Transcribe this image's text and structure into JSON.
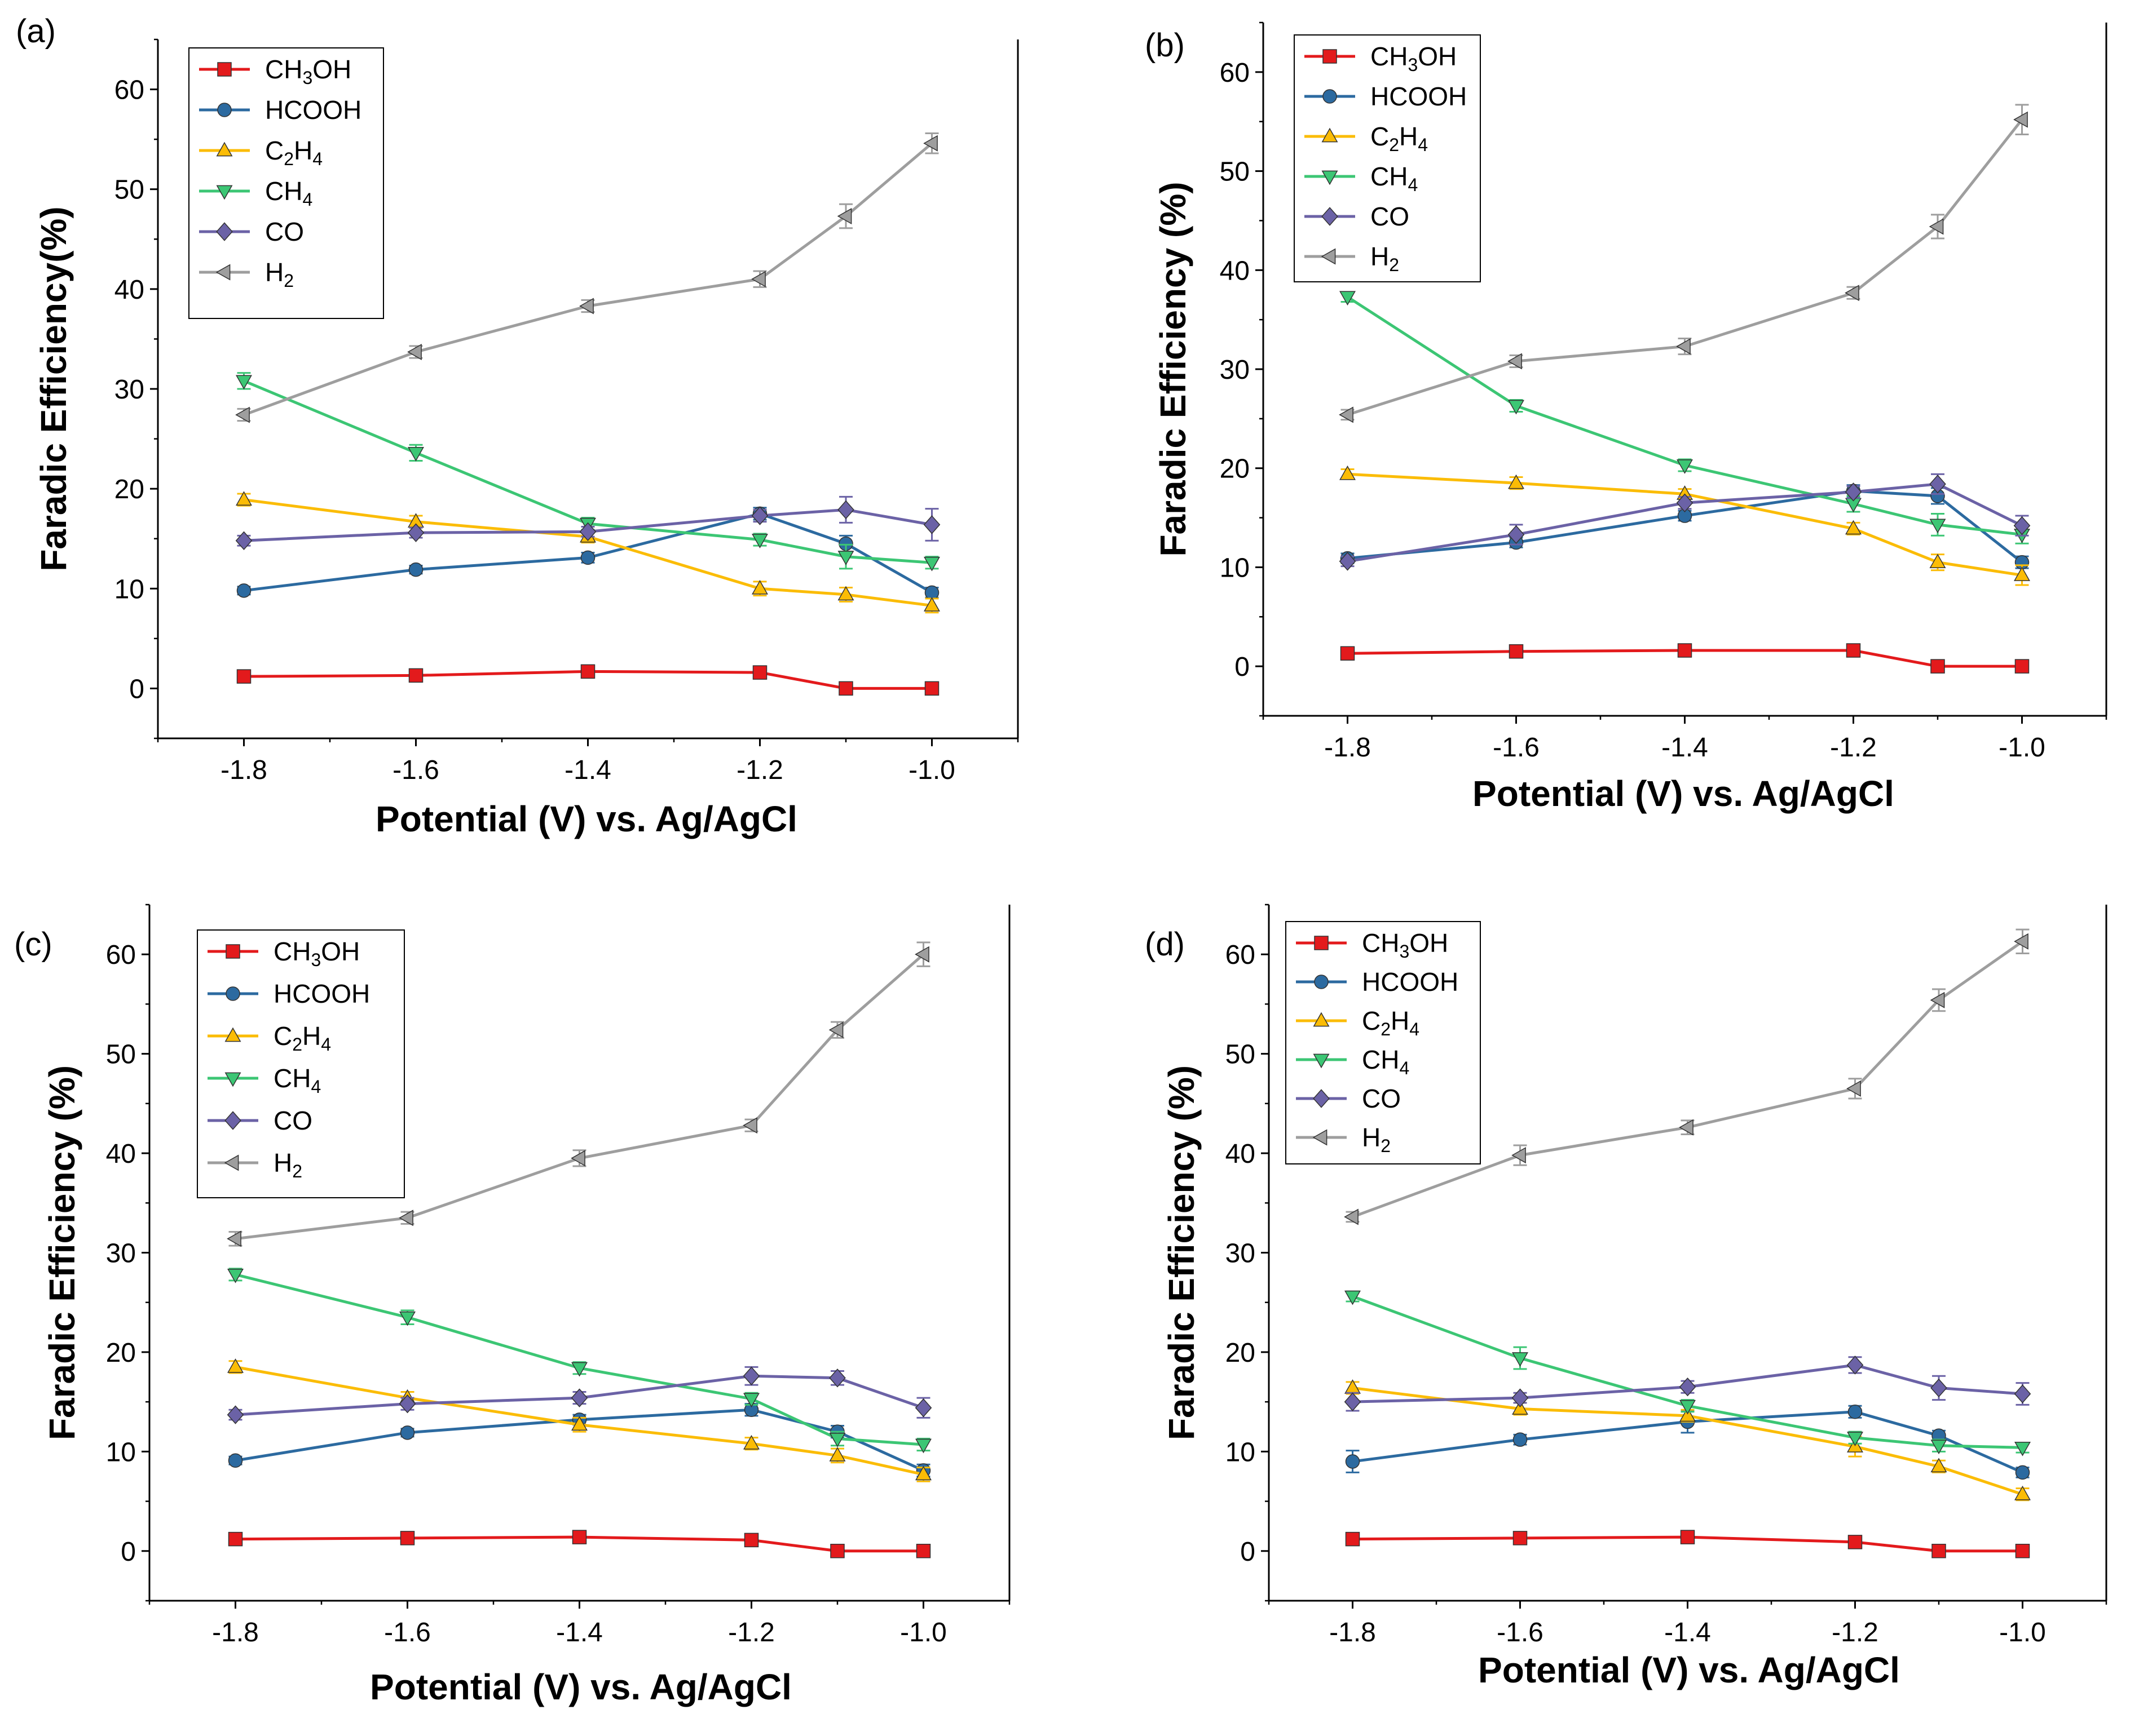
{
  "chart_data": [
    {
      "panel": "(a)",
      "type": "line",
      "xlabel": "Potential (V) vs. Ag/AgCl",
      "ylabel": "Faradic Efficiency(%)",
      "xlim": [
        -1.9,
        -0.9
      ],
      "ylim": [
        -5,
        65
      ],
      "xticks": [
        -1.8,
        -1.6,
        -1.4,
        -1.2,
        -1.0
      ],
      "xtick_labels": [
        "-1.8",
        "-1.6",
        "-1.4",
        "-1.2",
        "-1.0"
      ],
      "yticks": [
        0,
        10,
        20,
        30,
        40,
        50,
        60
      ],
      "ytick_labels": [
        "0",
        "10",
        "20",
        "30",
        "40",
        "50",
        "60"
      ],
      "x": [
        -1.8,
        -1.6,
        -1.4,
        -1.2,
        -1.1,
        -1.0
      ],
      "series": [
        {
          "name": "CH3OH",
          "label": [
            [
              "CH",
              "n"
            ],
            [
              "3",
              "sub"
            ],
            [
              "OH",
              "n"
            ]
          ],
          "color": "#e31a1c",
          "marker": "square",
          "values": [
            1.2,
            1.3,
            1.7,
            1.6,
            0.0,
            0.0
          ],
          "errors": [
            0.3,
            0.3,
            0.3,
            0.3,
            0.2,
            0.2
          ]
        },
        {
          "name": "HCOOH",
          "label": [
            [
              "HCOOH",
              "n"
            ]
          ],
          "color": "#2c6aa0",
          "marker": "circle",
          "values": [
            9.8,
            11.9,
            13.1,
            17.5,
            14.5,
            9.6
          ],
          "errors": [
            0.4,
            0.4,
            0.5,
            0.6,
            0.8,
            0.5
          ]
        },
        {
          "name": "C2H4",
          "label": [
            [
              "C",
              "n"
            ],
            [
              "2",
              "sub"
            ],
            [
              "H",
              "n"
            ],
            [
              "4",
              "sub"
            ]
          ],
          "color": "#fbbc05",
          "marker": "triangle-up",
          "values": [
            18.9,
            16.7,
            15.2,
            10.0,
            9.4,
            8.3
          ],
          "errors": [
            0.6,
            0.6,
            0.6,
            0.7,
            0.7,
            0.7
          ]
        },
        {
          "name": "CH4",
          "label": [
            [
              "CH",
              "n"
            ],
            [
              "4",
              "sub"
            ]
          ],
          "color": "#3cc674",
          "marker": "triangle-down",
          "values": [
            30.8,
            23.6,
            16.5,
            14.9,
            13.2,
            12.6
          ],
          "errors": [
            0.8,
            0.8,
            0.6,
            0.6,
            1.2,
            0.6
          ]
        },
        {
          "name": "CO",
          "label": [
            [
              "CO",
              "n"
            ]
          ],
          "color": "#6b62a6",
          "marker": "diamond",
          "values": [
            14.8,
            15.6,
            15.7,
            17.3,
            17.9,
            16.4
          ],
          "errors": [
            0.5,
            0.5,
            0.5,
            0.6,
            1.3,
            1.6
          ]
        },
        {
          "name": "H2",
          "label": [
            [
              "H",
              "n"
            ],
            [
              "2",
              "sub"
            ]
          ],
          "color": "#9e9e9e",
          "marker": "triangle-left",
          "values": [
            27.4,
            33.7,
            38.3,
            41.0,
            47.3,
            54.6
          ],
          "errors": [
            0.6,
            0.6,
            0.6,
            0.8,
            1.2,
            1.0
          ]
        }
      ]
    },
    {
      "panel": "(b)",
      "type": "line",
      "xlabel": "Potential (V) vs. Ag/AgCl",
      "ylabel": "Faradic Efficiency (%)",
      "xlim": [
        -1.9,
        -0.9
      ],
      "ylim": [
        -5,
        65
      ],
      "xticks": [
        -1.8,
        -1.6,
        -1.4,
        -1.2,
        -1.0
      ],
      "xtick_labels": [
        "-1.8",
        "-1.6",
        "-1.4",
        "-1.2",
        "-1.0"
      ],
      "yticks": [
        0,
        10,
        20,
        30,
        40,
        50,
        60
      ],
      "ytick_labels": [
        "0",
        "10",
        "20",
        "30",
        "40",
        "50",
        "60"
      ],
      "x": [
        -1.8,
        -1.6,
        -1.4,
        -1.2,
        -1.1,
        -1.0
      ],
      "series": [
        {
          "name": "CH3OH",
          "label": [
            [
              "CH",
              "n"
            ],
            [
              "3",
              "sub"
            ],
            [
              "OH",
              "n"
            ]
          ],
          "color": "#e31a1c",
          "marker": "square",
          "values": [
            1.3,
            1.5,
            1.6,
            1.6,
            0.0,
            0.0
          ],
          "errors": [
            0.3,
            0.3,
            0.3,
            0.3,
            0.2,
            0.2
          ]
        },
        {
          "name": "HCOOH",
          "label": [
            [
              "HCOOH",
              "n"
            ]
          ],
          "color": "#2c6aa0",
          "marker": "circle",
          "values": [
            10.9,
            12.5,
            15.2,
            17.7,
            17.2,
            10.5
          ],
          "errors": [
            0.5,
            0.5,
            0.5,
            0.6,
            0.8,
            0.6
          ]
        },
        {
          "name": "C2H4",
          "label": [
            [
              "C",
              "n"
            ],
            [
              "2",
              "sub"
            ],
            [
              "H",
              "n"
            ],
            [
              "4",
              "sub"
            ]
          ],
          "color": "#fbbc05",
          "marker": "triangle-up",
          "values": [
            19.4,
            18.5,
            17.4,
            13.9,
            10.5,
            9.2
          ],
          "errors": [
            0.5,
            0.6,
            0.5,
            0.6,
            0.8,
            1.0
          ]
        },
        {
          "name": "CH4",
          "label": [
            [
              "CH",
              "n"
            ],
            [
              "4",
              "sub"
            ]
          ],
          "color": "#3cc674",
          "marker": "triangle-down",
          "values": [
            37.3,
            26.3,
            20.3,
            16.4,
            14.3,
            13.3
          ],
          "errors": [
            0.5,
            0.6,
            0.6,
            0.8,
            1.1,
            0.9
          ]
        },
        {
          "name": "CO",
          "label": [
            [
              "CO",
              "n"
            ]
          ],
          "color": "#6b62a6",
          "marker": "diamond",
          "values": [
            10.6,
            13.3,
            16.5,
            17.6,
            18.4,
            14.2
          ],
          "errors": [
            0.5,
            1.0,
            0.6,
            0.6,
            1.0,
            1.0
          ]
        },
        {
          "name": "H2",
          "label": [
            [
              "H",
              "n"
            ],
            [
              "2",
              "sub"
            ]
          ],
          "color": "#9e9e9e",
          "marker": "triangle-left",
          "values": [
            25.4,
            30.8,
            32.3,
            37.7,
            44.4,
            55.2
          ],
          "errors": [
            0.5,
            0.6,
            0.8,
            0.6,
            1.2,
            1.5
          ]
        }
      ]
    },
    {
      "panel": "(c)",
      "type": "line",
      "xlabel": "Potential (V) vs. Ag/AgCl",
      "ylabel": "Faradic Efficiency (%)",
      "xlim": [
        -1.9,
        -0.9
      ],
      "ylim": [
        -5,
        65
      ],
      "xticks": [
        -1.8,
        -1.6,
        -1.4,
        -1.2,
        -1.0
      ],
      "xtick_labels": [
        "-1.8",
        "-1.6",
        "-1.4",
        "-1.2",
        "-1.0"
      ],
      "yticks": [
        0,
        10,
        20,
        30,
        40,
        50,
        60
      ],
      "ytick_labels": [
        "0",
        "10",
        "20",
        "30",
        "40",
        "50",
        "60"
      ],
      "x": [
        -1.8,
        -1.6,
        -1.4,
        -1.2,
        -1.1,
        -1.0
      ],
      "series": [
        {
          "name": "CH3OH",
          "label": [
            [
              "CH",
              "n"
            ],
            [
              "3",
              "sub"
            ],
            [
              "OH",
              "n"
            ]
          ],
          "color": "#e31a1c",
          "marker": "square",
          "values": [
            1.2,
            1.3,
            1.4,
            1.1,
            0.0,
            0.0
          ],
          "errors": [
            0.3,
            0.3,
            0.3,
            0.3,
            0.2,
            0.2
          ]
        },
        {
          "name": "HCOOH",
          "label": [
            [
              "HCOOH",
              "n"
            ]
          ],
          "color": "#2c6aa0",
          "marker": "circle",
          "values": [
            9.1,
            11.9,
            13.2,
            14.2,
            12.0,
            8.1
          ],
          "errors": [
            0.4,
            0.4,
            0.5,
            0.6,
            0.6,
            0.6
          ]
        },
        {
          "name": "C2H4",
          "label": [
            [
              "C",
              "n"
            ],
            [
              "2",
              "sub"
            ],
            [
              "H",
              "n"
            ],
            [
              "4",
              "sub"
            ]
          ],
          "color": "#fbbc05",
          "marker": "triangle-up",
          "values": [
            18.5,
            15.4,
            12.7,
            10.8,
            9.6,
            7.7
          ],
          "errors": [
            0.6,
            0.6,
            0.7,
            0.6,
            0.7,
            0.7
          ]
        },
        {
          "name": "CH4",
          "label": [
            [
              "CH",
              "n"
            ],
            [
              "4",
              "sub"
            ]
          ],
          "color": "#3cc674",
          "marker": "triangle-down",
          "values": [
            27.8,
            23.5,
            18.4,
            15.3,
            11.3,
            10.7
          ],
          "errors": [
            0.6,
            0.7,
            0.6,
            0.6,
            0.7,
            0.6
          ]
        },
        {
          "name": "CO",
          "label": [
            [
              "CO",
              "n"
            ]
          ],
          "color": "#6b62a6",
          "marker": "diamond",
          "values": [
            13.7,
            14.8,
            15.4,
            17.6,
            17.4,
            14.4
          ],
          "errors": [
            0.5,
            0.6,
            0.6,
            0.9,
            0.7,
            1.0
          ]
        },
        {
          "name": "H2",
          "label": [
            [
              "H",
              "n"
            ],
            [
              "2",
              "sub"
            ]
          ],
          "color": "#9e9e9e",
          "marker": "triangle-left",
          "values": [
            31.4,
            33.5,
            39.5,
            42.8,
            52.4,
            60.0
          ],
          "errors": [
            0.7,
            0.6,
            0.8,
            0.6,
            0.8,
            1.2
          ]
        }
      ]
    },
    {
      "panel": "(d)",
      "type": "line",
      "xlabel": "Potential (V) vs. Ag/AgCl",
      "ylabel": "Faradic Efficiency (%)",
      "xlim": [
        -1.9,
        -0.9
      ],
      "ylim": [
        -5,
        65
      ],
      "xticks": [
        -1.8,
        -1.6,
        -1.4,
        -1.2,
        -1.0
      ],
      "xtick_labels": [
        "-1.8",
        "-1.6",
        "-1.4",
        "-1.2",
        "-1.0"
      ],
      "yticks": [
        0,
        10,
        20,
        30,
        40,
        50,
        60
      ],
      "ytick_labels": [
        "0",
        "10",
        "20",
        "30",
        "40",
        "50",
        "60"
      ],
      "x": [
        -1.8,
        -1.6,
        -1.4,
        -1.2,
        -1.1,
        -1.0
      ],
      "series": [
        {
          "name": "CH3OH",
          "label": [
            [
              "CH",
              "n"
            ],
            [
              "3",
              "sub"
            ],
            [
              "OH",
              "n"
            ]
          ],
          "color": "#e31a1c",
          "marker": "square",
          "values": [
            1.2,
            1.3,
            1.4,
            0.9,
            0.0,
            0.0
          ],
          "errors": [
            0.3,
            0.3,
            0.3,
            0.3,
            0.2,
            0.2
          ]
        },
        {
          "name": "HCOOH",
          "label": [
            [
              "HCOOH",
              "n"
            ]
          ],
          "color": "#2c6aa0",
          "marker": "circle",
          "values": [
            9.0,
            11.2,
            13.0,
            14.0,
            11.6,
            7.9
          ],
          "errors": [
            1.1,
            0.5,
            1.1,
            0.6,
            0.5,
            0.5
          ]
        },
        {
          "name": "C2H4",
          "label": [
            [
              "C",
              "n"
            ],
            [
              "2",
              "sub"
            ],
            [
              "H",
              "n"
            ],
            [
              "4",
              "sub"
            ]
          ],
          "color": "#fbbc05",
          "marker": "triangle-up",
          "values": [
            16.4,
            14.3,
            13.6,
            10.5,
            8.5,
            5.7
          ],
          "errors": [
            0.6,
            0.6,
            0.6,
            1.0,
            0.6,
            0.6
          ]
        },
        {
          "name": "CH4",
          "label": [
            [
              "CH",
              "n"
            ],
            [
              "4",
              "sub"
            ]
          ],
          "color": "#3cc674",
          "marker": "triangle-down",
          "values": [
            25.6,
            19.4,
            14.6,
            11.4,
            10.6,
            10.4
          ],
          "errors": [
            0.5,
            1.1,
            0.6,
            0.6,
            0.6,
            0.5
          ]
        },
        {
          "name": "CO",
          "label": [
            [
              "CO",
              "n"
            ]
          ],
          "color": "#6b62a6",
          "marker": "diamond",
          "values": [
            15.0,
            15.4,
            16.5,
            18.7,
            16.4,
            15.8
          ],
          "errors": [
            0.9,
            0.5,
            0.6,
            0.8,
            1.2,
            1.1
          ]
        },
        {
          "name": "H2",
          "label": [
            [
              "H",
              "n"
            ],
            [
              "2",
              "sub"
            ]
          ],
          "color": "#9e9e9e",
          "marker": "triangle-left",
          "values": [
            33.6,
            39.8,
            42.6,
            46.5,
            55.4,
            61.3
          ],
          "errors": [
            0.5,
            1.0,
            0.7,
            1.0,
            1.1,
            1.2
          ]
        }
      ]
    }
  ]
}
